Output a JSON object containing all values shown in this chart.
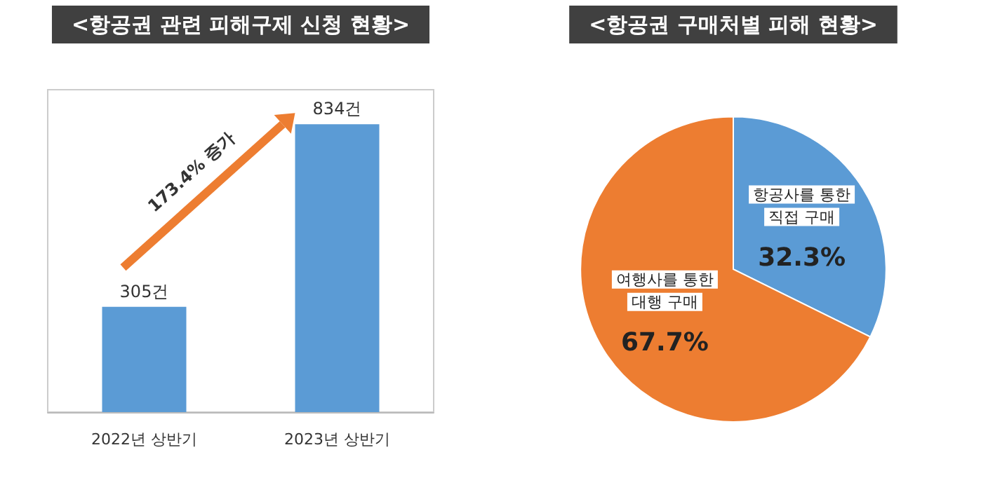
{
  "chart_data": [
    {
      "type": "bar",
      "title": "<항공권 관련 피해구제 신청 현황>",
      "categories": [
        "2022년 상반기",
        "2023년 상반기"
      ],
      "values": [
        305,
        834
      ],
      "value_labels": [
        "305건",
        "834건"
      ],
      "color": "#5b9bd5",
      "annotations": [
        "173.4% 증가"
      ]
    },
    {
      "type": "pie",
      "title": "<항공권 구매처별 피해 현황>",
      "categories": [
        "항공사를 통한\n직접 구매",
        "여행사를 통한\n대행 구매"
      ],
      "values": [
        32.3,
        67.7
      ],
      "value_labels": [
        "32.3%",
        "67.7%"
      ],
      "colors": [
        "#5b9bd5",
        "#ed7d31"
      ]
    }
  ]
}
